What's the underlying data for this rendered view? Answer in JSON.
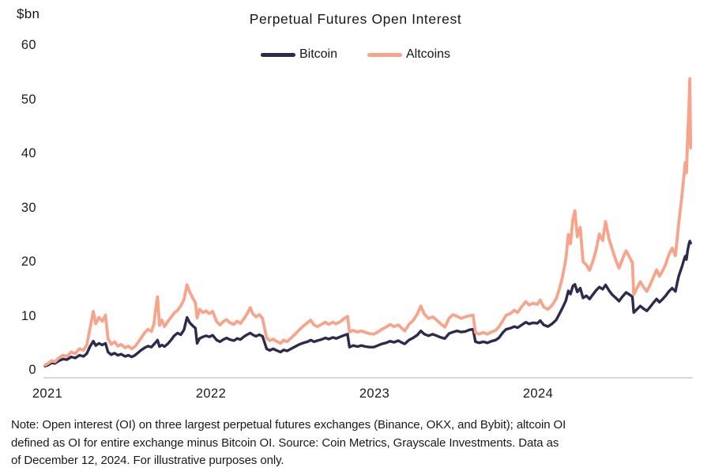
{
  "chart": {
    "title": "Perpetual Futures Open Interest",
    "unit_label": "$bn",
    "legend": [
      {
        "label": "Bitcoin",
        "color": "#2e2a4e"
      },
      {
        "label": "Altcoins",
        "color": "#f7a48b"
      }
    ],
    "note_lines": [
      "Note: Open interest (OI) on three largest perpetual futures exchanges (Binance, OKX, and Bybit); altcoin OI",
      "defined as OI for entire exchange minus Bitcoin OI. Source: Coin Metrics, Grayscale Investments. Data as",
      "of December 12, 2024. For illustrative purposes only."
    ]
  },
  "chart_data": {
    "type": "line",
    "title": "Perpetual Futures Open Interest",
    "xlabel": "",
    "ylabel": "$bn",
    "x_unit": "decimal_year",
    "xlim": [
      2021.0,
      2024.96
    ],
    "ylim": [
      0,
      60
    ],
    "x_ticks": [
      2021,
      2022,
      2023,
      2024
    ],
    "y_ticks": [
      0,
      10,
      20,
      30,
      40,
      50,
      60
    ],
    "grid": false,
    "legend_position": "top-center",
    "x": [
      2021.0,
      2021.02,
      2021.04,
      2021.06,
      2021.085,
      2021.11,
      2021.135,
      2021.16,
      2021.185,
      2021.21,
      2021.235,
      2021.255,
      2021.275,
      2021.295,
      2021.31,
      2021.33,
      2021.35,
      2021.37,
      2021.385,
      2021.405,
      2021.425,
      2021.445,
      2021.465,
      2021.49,
      2021.51,
      2021.53,
      2021.55,
      2021.57,
      2021.59,
      2021.61,
      2021.63,
      2021.65,
      2021.665,
      2021.68,
      2021.688,
      2021.7,
      2021.715,
      2021.73,
      2021.75,
      2021.77,
      2021.79,
      2021.81,
      2021.83,
      2021.85,
      2021.868,
      2021.885,
      2021.905,
      2021.92,
      2021.93,
      2021.945,
      2021.965,
      2021.985,
      2022.005,
      2022.025,
      2022.05,
      2022.07,
      2022.09,
      2022.11,
      2022.13,
      2022.155,
      2022.175,
      2022.195,
      2022.215,
      2022.235,
      2022.255,
      2022.27,
      2022.29,
      2022.31,
      2022.33,
      2022.355,
      2022.375,
      2022.395,
      2022.415,
      2022.44,
      2022.46,
      2022.48,
      2022.505,
      2022.53,
      2022.555,
      2022.58,
      2022.605,
      2022.625,
      2022.645,
      2022.665,
      2022.69,
      2022.715,
      2022.735,
      2022.76,
      2022.78,
      2022.805,
      2022.83,
      2022.85,
      2022.862,
      2022.885,
      2022.91,
      2022.935,
      2022.96,
      2022.985,
      2023.01,
      2023.035,
      2023.06,
      2023.085,
      2023.11,
      2023.135,
      2023.16,
      2023.185,
      2023.2,
      2023.225,
      2023.25,
      2023.275,
      2023.298,
      2023.32,
      2023.345,
      2023.37,
      2023.395,
      2023.42,
      2023.445,
      2023.47,
      2023.495,
      2023.52,
      2023.545,
      2023.57,
      2023.595,
      2023.618,
      2023.632,
      2023.655,
      2023.68,
      2023.705,
      2023.73,
      2023.755,
      2023.775,
      2023.8,
      2023.82,
      2023.845,
      2023.87,
      2023.89,
      2023.915,
      2023.94,
      2023.96,
      2023.985,
      2024.01,
      2024.028,
      2024.05,
      2024.075,
      2024.1,
      2024.125,
      2024.145,
      2024.165,
      2024.185,
      2024.2,
      2024.213,
      2024.228,
      2024.24,
      2024.255,
      2024.273,
      2024.29,
      2024.31,
      2024.33,
      2024.35,
      2024.37,
      2024.39,
      2024.41,
      2024.428,
      2024.448,
      2024.468,
      2024.49,
      2024.51,
      2024.53,
      2024.553,
      2024.575,
      2024.592,
      2024.6,
      2024.62,
      2024.64,
      2024.66,
      2024.68,
      2024.7,
      2024.72,
      2024.74,
      2024.757,
      2024.775,
      2024.795,
      2024.815,
      2024.835,
      2024.855,
      2024.865,
      2024.875,
      2024.885,
      2024.895,
      2024.905,
      2024.915,
      2024.922,
      2024.93,
      2024.937,
      2024.943,
      2024.948
    ],
    "series": [
      {
        "name": "Bitcoin",
        "color": "#2e2a4e",
        "values": [
          0.7,
          0.9,
          1.3,
          1.2,
          1.7,
          2.0,
          1.9,
          2.4,
          2.2,
          2.7,
          2.5,
          3.0,
          4.3,
          5.3,
          4.5,
          4.9,
          4.6,
          4.9,
          3.3,
          2.8,
          3.1,
          2.7,
          2.9,
          2.5,
          2.7,
          2.4,
          2.7,
          3.2,
          3.7,
          4.1,
          4.4,
          4.2,
          4.7,
          5.2,
          5.5,
          4.3,
          4.6,
          4.3,
          4.8,
          5.5,
          6.3,
          6.8,
          6.5,
          7.4,
          9.7,
          8.7,
          8.1,
          7.7,
          4.9,
          5.8,
          6.1,
          6.3,
          6.1,
          6.4,
          5.5,
          5.2,
          5.6,
          5.9,
          5.6,
          5.4,
          5.8,
          5.6,
          6.1,
          6.5,
          6.8,
          6.5,
          6.2,
          6.5,
          6.2,
          3.9,
          3.6,
          3.9,
          3.6,
          3.3,
          3.7,
          3.5,
          3.9,
          4.3,
          4.7,
          5.0,
          5.2,
          5.5,
          5.2,
          5.4,
          5.6,
          5.9,
          5.7,
          6.0,
          5.8,
          6.1,
          6.4,
          6.6,
          4.2,
          4.5,
          4.3,
          4.5,
          4.3,
          4.2,
          4.2,
          4.5,
          4.8,
          5.0,
          5.3,
          5.1,
          5.4,
          5.0,
          4.8,
          5.5,
          5.9,
          6.4,
          7.2,
          6.6,
          6.3,
          6.6,
          6.3,
          6.0,
          5.8,
          6.7,
          7.0,
          7.2,
          7.0,
          7.1,
          7.4,
          7.5,
          5.2,
          5.0,
          5.2,
          5.0,
          5.3,
          5.5,
          5.9,
          6.9,
          7.5,
          7.7,
          8.0,
          7.8,
          8.3,
          8.8,
          8.5,
          8.7,
          8.6,
          9.1,
          8.3,
          8.0,
          8.5,
          9.2,
          10.3,
          11.5,
          12.8,
          14.6,
          14.0,
          15.5,
          15.8,
          14.4,
          15.1,
          13.3,
          13.7,
          13.1,
          13.9,
          14.7,
          15.3,
          14.9,
          15.7,
          14.7,
          13.9,
          13.3,
          12.7,
          13.5,
          14.3,
          13.9,
          13.5,
          10.6,
          11.2,
          11.8,
          11.3,
          10.9,
          11.6,
          12.4,
          13.1,
          12.5,
          13.0,
          13.7,
          14.5,
          15.1,
          14.5,
          16.0,
          17.3,
          18.2,
          19.1,
          20.1,
          21.0,
          20.4,
          22.1,
          23.2,
          23.8,
          23.4
        ]
      },
      {
        "name": "Altcoins",
        "color": "#f7a48b",
        "values": [
          0.9,
          1.2,
          1.7,
          1.5,
          2.2,
          2.7,
          2.5,
          3.3,
          3.0,
          3.9,
          3.6,
          4.6,
          7.6,
          10.8,
          8.5,
          9.7,
          9.0,
          10.1,
          5.8,
          4.7,
          5.2,
          4.4,
          4.7,
          4.1,
          4.4,
          3.9,
          4.3,
          5.1,
          6.0,
          6.9,
          7.5,
          7.1,
          8.4,
          12.0,
          13.5,
          8.2,
          9.2,
          8.0,
          8.9,
          9.7,
          10.5,
          11.0,
          11.8,
          13.0,
          15.7,
          14.4,
          13.2,
          12.4,
          9.6,
          11.2,
          10.6,
          10.9,
          10.4,
          10.8,
          8.9,
          8.3,
          8.9,
          9.3,
          8.7,
          8.4,
          9.0,
          8.6,
          9.4,
          10.3,
          11.5,
          10.4,
          9.8,
          10.2,
          9.5,
          5.9,
          5.4,
          5.7,
          5.3,
          4.9,
          5.5,
          5.2,
          5.9,
          6.6,
          7.4,
          8.1,
          8.7,
          9.2,
          8.3,
          8.0,
          8.4,
          8.8,
          8.4,
          8.8,
          8.5,
          8.9,
          9.5,
          9.9,
          7.0,
          7.3,
          7.0,
          7.2,
          6.9,
          6.7,
          6.6,
          7.0,
          7.5,
          7.9,
          8.4,
          8.0,
          8.3,
          7.6,
          7.2,
          8.4,
          9.1,
          10.2,
          11.8,
          10.3,
          9.5,
          9.8,
          9.2,
          8.5,
          7.9,
          9.5,
          10.2,
          9.9,
          9.5,
          9.8,
          10.0,
          10.1,
          6.9,
          6.6,
          6.9,
          6.6,
          7.0,
          7.3,
          7.9,
          9.1,
          10.1,
          10.4,
          11.0,
          10.6,
          11.7,
          12.6,
          12.0,
          12.3,
          12.1,
          12.9,
          11.6,
          11.2,
          11.9,
          13.1,
          14.9,
          17.3,
          20.5,
          25.0,
          23.3,
          27.8,
          29.4,
          24.6,
          26.3,
          20.0,
          19.4,
          18.4,
          20.0,
          22.2,
          25.1,
          23.9,
          27.4,
          24.3,
          22.3,
          20.3,
          18.8,
          20.4,
          22.0,
          20.8,
          19.8,
          13.9,
          15.1,
          16.3,
          15.3,
          14.5,
          15.7,
          17.1,
          18.5,
          17.3,
          18.2,
          19.5,
          21.3,
          22.5,
          21.1,
          24.2,
          27.0,
          29.6,
          32.3,
          35.2,
          38.3,
          36.4,
          43.0,
          48.5,
          53.8,
          41.0
        ]
      }
    ]
  }
}
